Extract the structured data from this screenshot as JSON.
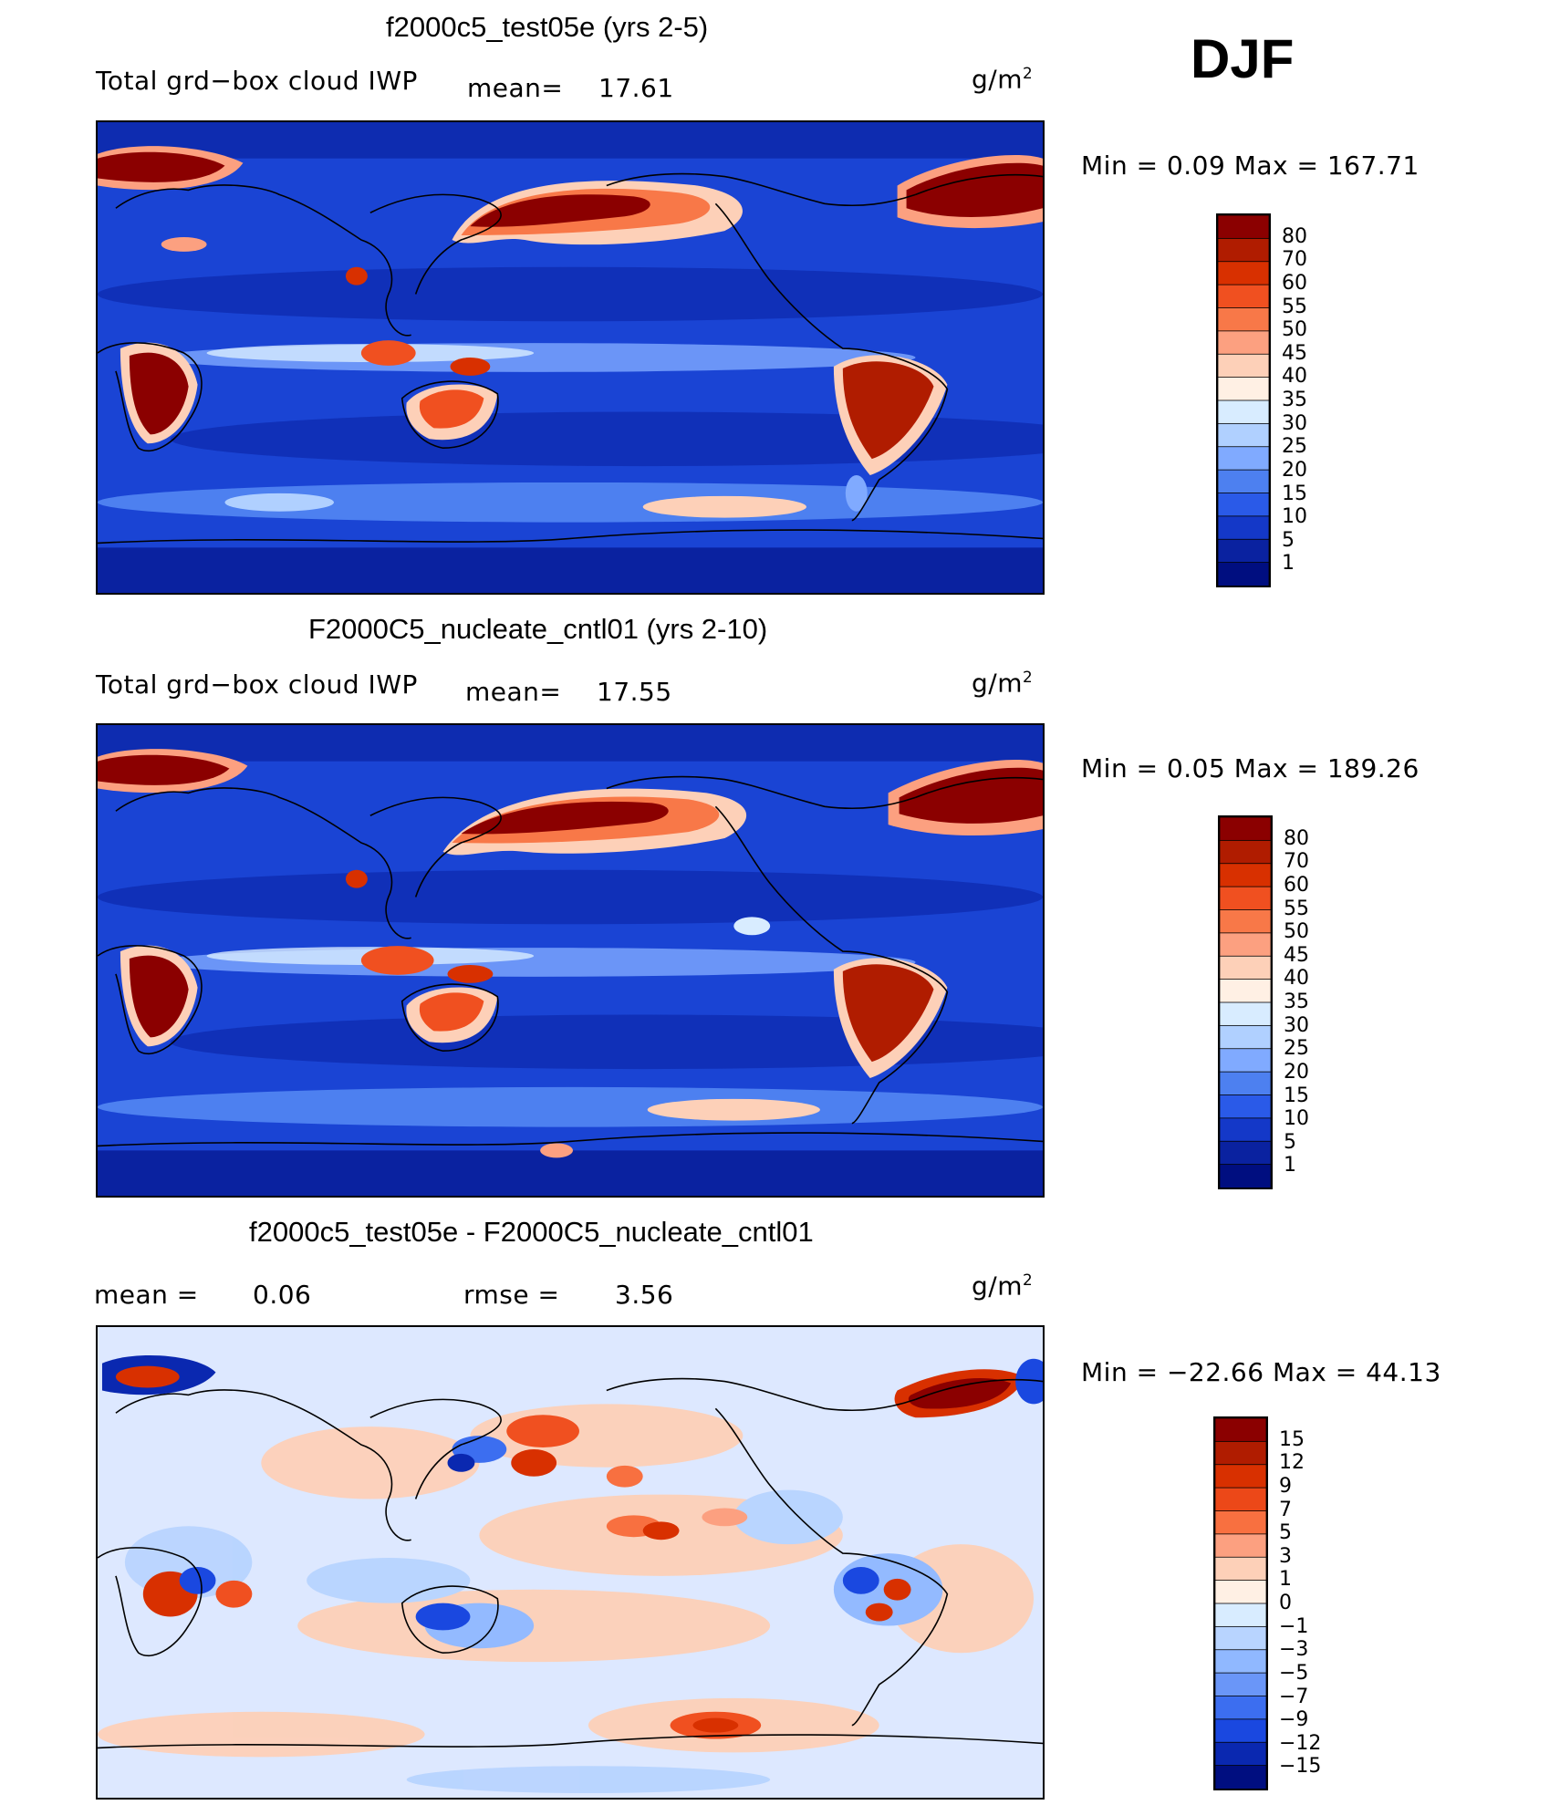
{
  "season": "DJF",
  "panels": [
    {
      "title": "f2000c5_test05e (yrs 2-5)",
      "left_label": "Total grd−box cloud IWP",
      "mean_label": "mean=",
      "mean_value": "17.61",
      "units": "g/m",
      "units_sup": "2",
      "minmax": "Min  =     0.09  Max  =  167.71",
      "colorbar": {
        "labels": [
          "80",
          "70",
          "60",
          "55",
          "50",
          "45",
          "40",
          "35",
          "30",
          "25",
          "20",
          "15",
          "10",
          "5",
          "1"
        ]
      }
    },
    {
      "title": "F2000C5_nucleate_cntl01 (yrs 2-10)",
      "left_label": "Total grd−box cloud IWP",
      "mean_label": "mean=",
      "mean_value": "17.55",
      "units": "g/m",
      "units_sup": "2",
      "minmax": "Min  =     0.05  Max  =  189.26",
      "colorbar": {
        "labels": [
          "80",
          "70",
          "60",
          "55",
          "50",
          "45",
          "40",
          "35",
          "30",
          "25",
          "20",
          "15",
          "10",
          "5",
          "1"
        ]
      }
    },
    {
      "title": "f2000c5_test05e - F2000C5_nucleate_cntl01",
      "left_label": "mean  =",
      "mean_value": "0.06",
      "rmse_label": "rmse  =",
      "rmse_value": "3.56",
      "units": "g/m",
      "units_sup": "2",
      "minmax": "Min  = −22.66  Max  =    44.13",
      "colorbar": {
        "labels": [
          "15",
          "12",
          "9",
          "7",
          "5",
          "3",
          "1",
          "0",
          "−1",
          "−3",
          "−5",
          "−7",
          "−9",
          "−12",
          "−15"
        ]
      }
    }
  ],
  "colors": {
    "abs_scale": [
      "#8b0000",
      "#b01c00",
      "#d83000",
      "#f05020",
      "#f87848",
      "#fca080",
      "#fdd0b8",
      "#fff0e4",
      "#d8ecff",
      "#b0d0ff",
      "#80aaff",
      "#4d80f0",
      "#2a5ae8",
      "#1438c8",
      "#0a22a0",
      "#000e80"
    ],
    "diff_scale": [
      "#8b0000",
      "#b01c00",
      "#d83000",
      "#ec4818",
      "#f87040",
      "#fca080",
      "#fdd0b8",
      "#fff0e4",
      "#d8ecff",
      "#b8d4ff",
      "#90b8ff",
      "#6a96f8",
      "#3c6ef0",
      "#1a48e0",
      "#0a28b0",
      "#000e80"
    ],
    "background_abs": "#1840d0",
    "background_diff": "#dde8ff"
  }
}
